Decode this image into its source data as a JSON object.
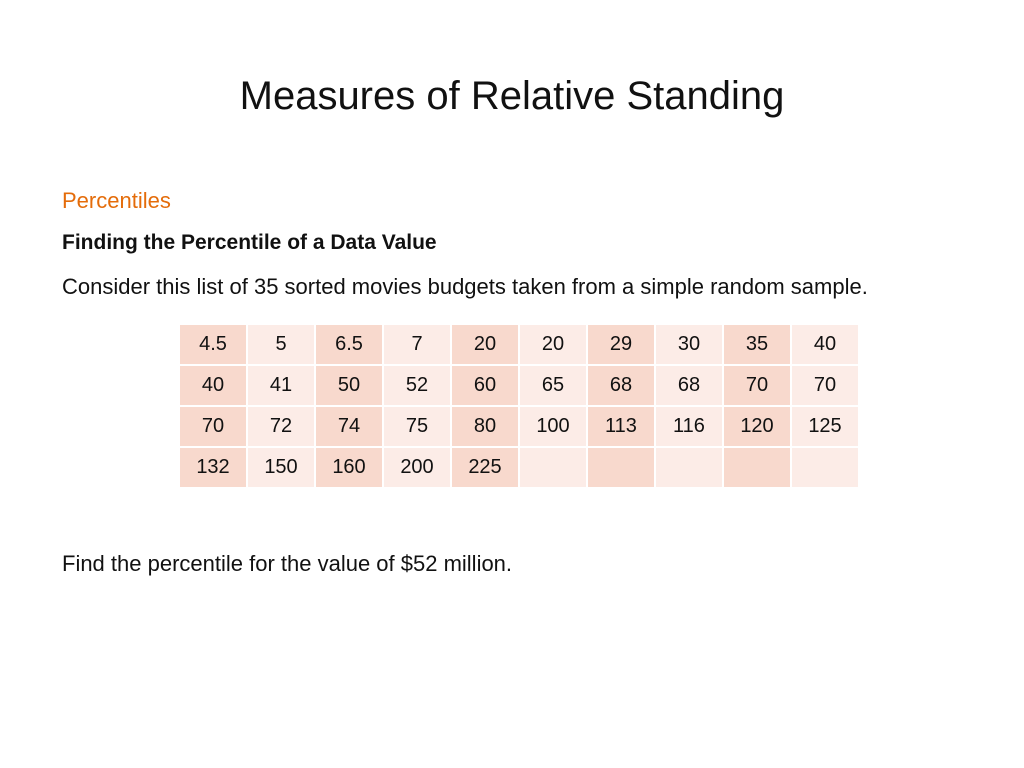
{
  "slide": {
    "title": "Measures of Relative Standing",
    "section_label": "Percentiles",
    "section_color": "#e46c0a",
    "subheading": "Finding the Percentile of a Data Value",
    "intro": "Consider this list of 35 sorted movies budgets taken from a simple random sample.",
    "question": "Find the percentile for the value of $52 million."
  },
  "table": {
    "rows": [
      [
        "4.5",
        "5",
        "6.5",
        "7",
        "20",
        "20",
        "29",
        "30",
        "35",
        "40"
      ],
      [
        "40",
        "41",
        "50",
        "52",
        "60",
        "65",
        "68",
        "68",
        "70",
        "70"
      ],
      [
        "70",
        "72",
        "74",
        "75",
        "80",
        "100",
        "113",
        "116",
        "120",
        "125"
      ],
      [
        "132",
        "150",
        "160",
        "200",
        "225",
        "",
        "",
        "",
        "",
        ""
      ]
    ],
    "colors": {
      "dark_column": "#f8d9cd",
      "light_column": "#fcece7"
    }
  }
}
